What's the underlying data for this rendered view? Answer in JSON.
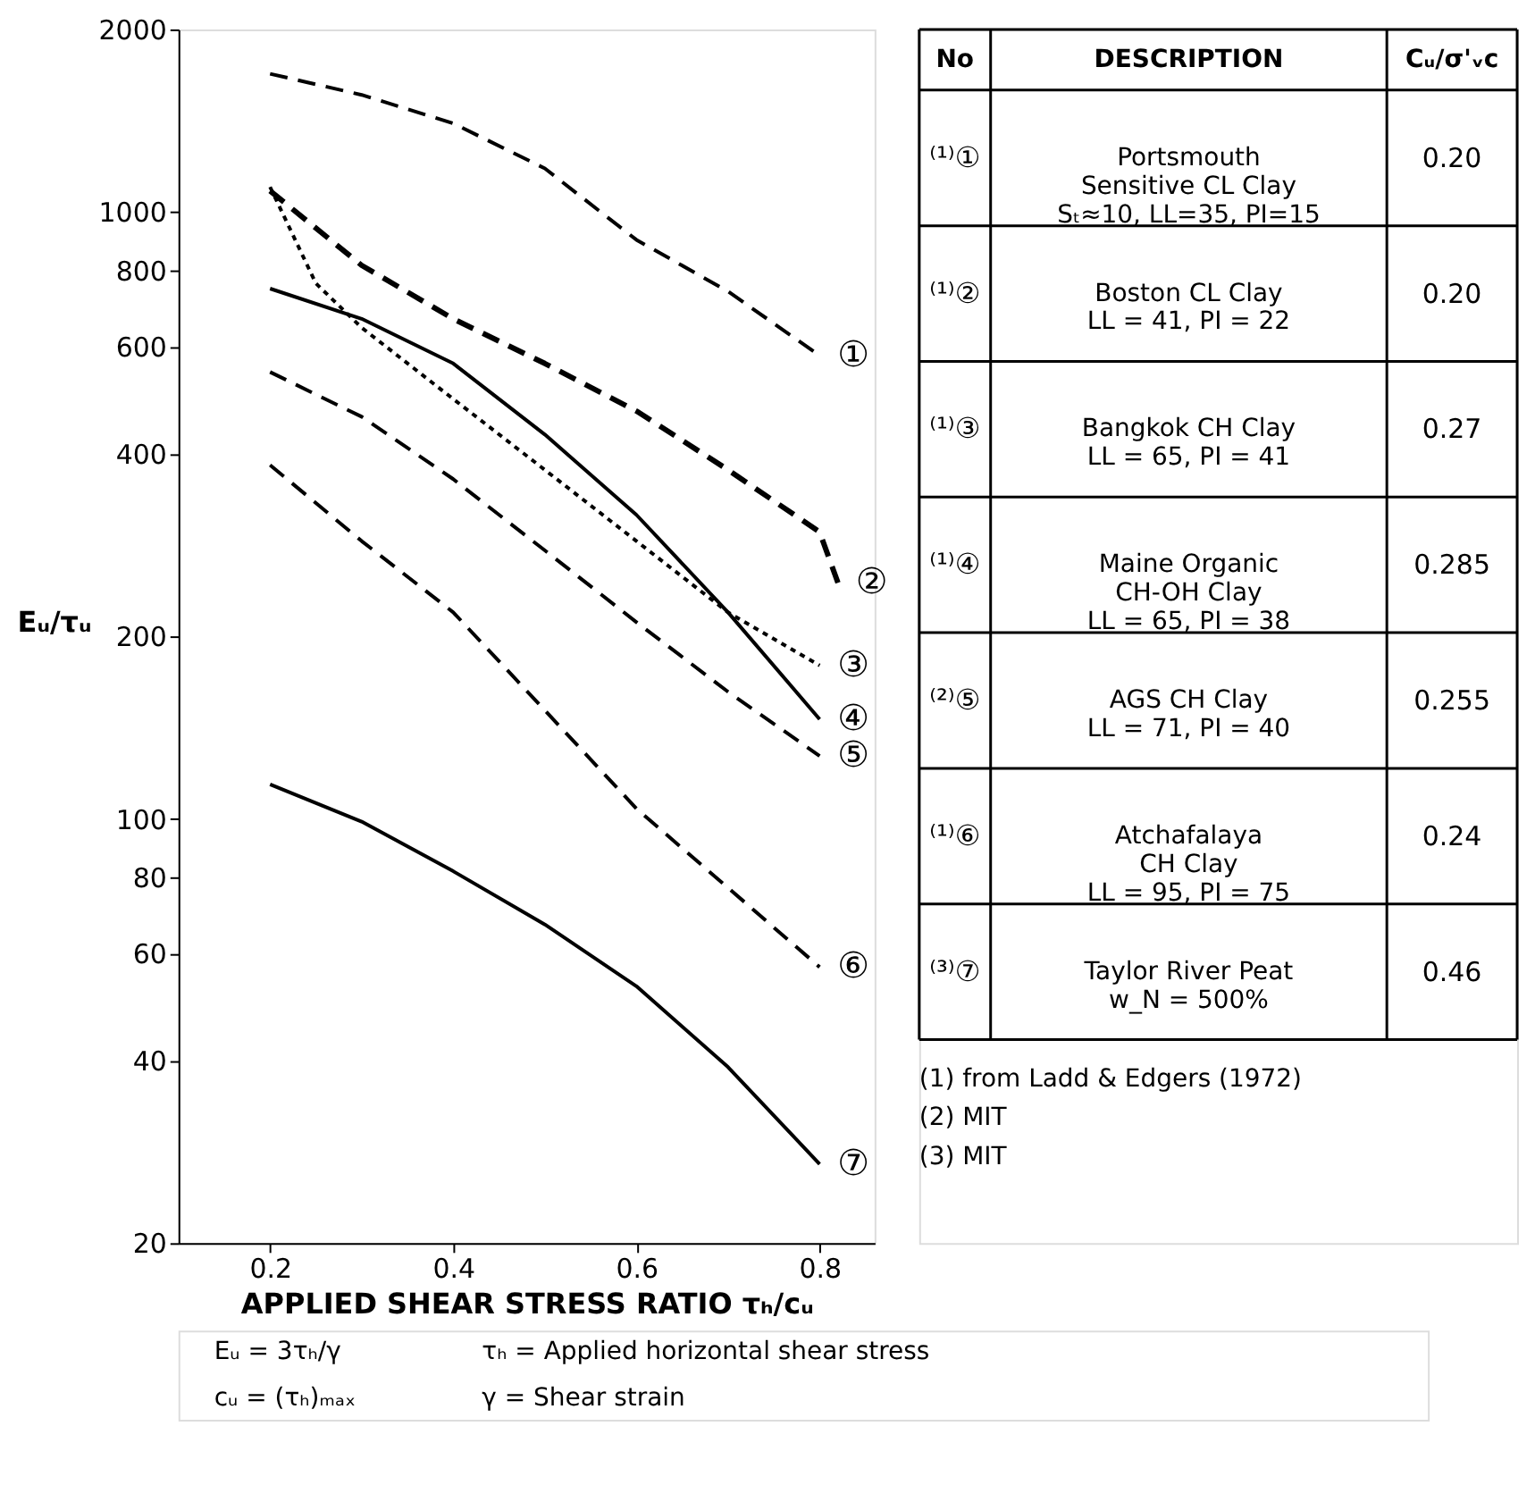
{
  "chart_data": {
    "type": "line",
    "xlabel": "APPLIED SHEAR STRESS RATIO τₕ/cᵤ",
    "ylabel": "Eᵤ/τᵤ",
    "xlim": [
      0.1,
      0.86
    ],
    "xticks": [
      0.2,
      0.4,
      0.6,
      0.8
    ],
    "ylim": [
      20,
      2000
    ],
    "yticks": [
      20,
      40,
      60,
      80,
      100,
      200,
      400,
      600,
      800,
      1000,
      2000
    ],
    "log": "y",
    "grid": false,
    "marker": "none",
    "x": [
      0.2,
      0.3,
      0.4,
      0.5,
      0.6,
      0.7,
      0.8
    ],
    "series": [
      {
        "name": "Portsmouth\nSensitive CL Clay\nSₜ≈10, LL=35, PI=15",
        "color": "#000000",
        "line_style": "dashed",
        "values": [
          1690,
          1560,
          1400,
          1180,
          900,
          740,
          580
        ]
      },
      {
        "name": "Boston CL Clay\nLL = 41, PI = 22",
        "color": "#000000",
        "line_style": "dashed",
        "x": [
          0.2,
          0.3,
          0.4,
          0.5,
          0.6,
          0.7,
          0.8,
          0.82
        ],
        "values": [
          1084,
          817,
          667,
          563,
          470,
          376,
          297,
          245
        ]
      },
      {
        "name": "Bangkok CH Clay\nLL = 65, PI = 41",
        "color": "#000000",
        "line_style": "dotted",
        "x": [
          0.2,
          0.25,
          0.3,
          0.4,
          0.5,
          0.6,
          0.7,
          0.8
        ],
        "values": [
          1100,
          763,
          645,
          492,
          376,
          287,
          219,
          179
        ]
      },
      {
        "name": "Maine Organic\nCH-OH Clay\nLL = 65, PI = 38",
        "color": "#000000",
        "line_style": "solid",
        "values": [
          748,
          667,
          563,
          430,
          317,
          219,
          146
        ]
      },
      {
        "name": "AGS CH Clay\nLL = 71, PI = 40",
        "color": "#000000",
        "line_style": "dashed",
        "values": [
          545,
          460,
          363,
          277,
          211,
          162,
          127
        ]
      },
      {
        "name": "Atchafalaya\nCH Clay\nLL = 95, PI = 75",
        "color": "#000000",
        "line_style": "dashed",
        "values": [
          383,
          287,
          219,
          151,
          104,
          77,
          57
        ]
      },
      {
        "name": "Taylor River Peat\nw_N = 500%",
        "color": "#000000",
        "line_style": "solid",
        "values": [
          114,
          99,
          82,
          67,
          53,
          39,
          27
        ]
      }
    ],
    "annotations": [
      "No",
      "DESCRIPTION",
      "Cᵤ/σ'ᵥc",
      "⁽¹⁾①",
      "⁽¹⁾②",
      "⁽¹⁾③",
      "⁽¹⁾④",
      "⁽²⁾⑤",
      "⁽¹⁾⑥",
      "⁽³⁾⑦",
      "0.20",
      "0.20",
      "0.27",
      "0.285",
      "0.255",
      "0.24",
      "0.46",
      "(1) from Ladd & Edgers (1972)",
      "(2) MIT",
      "(3) MIT",
      "Eᵤ = 3τₕ/γ",
      "τₕ = Applied horizontal shear stress",
      "cᵤ = (τₕ)ₘₐₓ",
      "γ = Shear strain",
      "①",
      "②",
      "③",
      "④",
      "⑤",
      "⑥",
      "⑦"
    ]
  }
}
